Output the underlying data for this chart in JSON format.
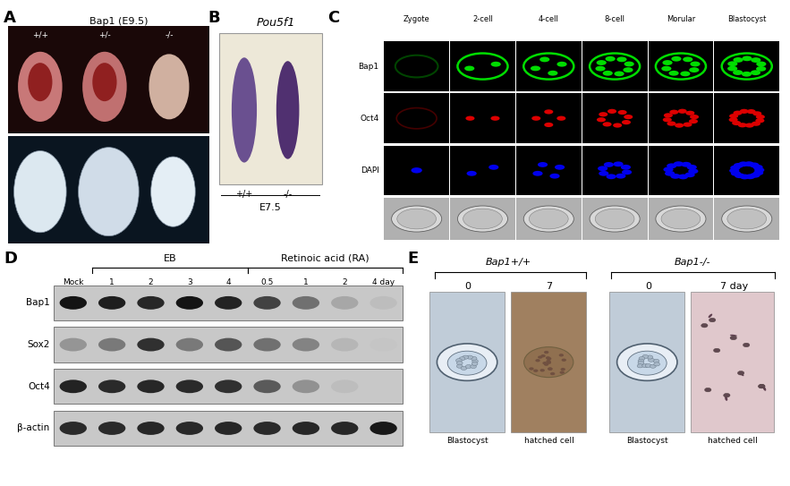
{
  "figure_width": 8.83,
  "figure_height": 5.43,
  "bg_color": "#ffffff",
  "panel_A": {
    "label": "A",
    "title": "Bap1 (E9.5)",
    "genotypes": [
      "+/+",
      "+/-",
      "-/-"
    ],
    "top_bg": "#1a0808",
    "bottom_bg": "#0a1520",
    "embryo_colors_top": [
      "#c87878",
      "#c07070",
      "#d0b0a0"
    ],
    "embryo_colors_bottom": [
      "#dce8f0",
      "#d0dce8",
      "#e4eef5"
    ]
  },
  "panel_B": {
    "label": "B",
    "title": "Pou5f1",
    "genotypes": [
      "+/+",
      "-/-"
    ],
    "subtitle": "E7.5",
    "box_bg": "#ede8d8",
    "stain_left": "#6a5090",
    "stain_right": "#503070"
  },
  "panel_C": {
    "label": "C",
    "col_labels": [
      "Zygote",
      "2-cell",
      "4-cell",
      "8-cell",
      "Morular",
      "Blastocyst"
    ],
    "row_labels": [
      "Bap1",
      "Oct4",
      "DAPI",
      ""
    ],
    "row_colors": [
      "#00dd00",
      "#dd0000",
      "#0000ee",
      "#808080"
    ],
    "cell_bg": "#000000",
    "dic_bg": "#b0b0b0"
  },
  "panel_D": {
    "label": "D",
    "eb_label": "EB",
    "ra_label": "Retinoic acid (RA)",
    "col_labels": [
      "Mock",
      "1",
      "2",
      "3",
      "4",
      "0.5",
      "1",
      "2",
      "4 day"
    ],
    "row_labels": [
      "Bap1",
      "Sox2",
      "Oct4",
      "β-actin"
    ],
    "gel_bg": "#c8c8c8"
  },
  "panel_E": {
    "label": "E",
    "group1_label": "Bap1+/+",
    "group2_label": "Bap1-/-",
    "time_labels": [
      "0",
      "7",
      "0",
      "7 day"
    ],
    "bottom_labels": [
      "Blastocyst",
      "hatched cell",
      "Blastocyst",
      "hatched cell"
    ],
    "img1_bg": "#c0ccd8",
    "img2_bg": "#a08060",
    "img3_bg": "#c0ccd8",
    "img4_bg": "#e0c8cc"
  }
}
